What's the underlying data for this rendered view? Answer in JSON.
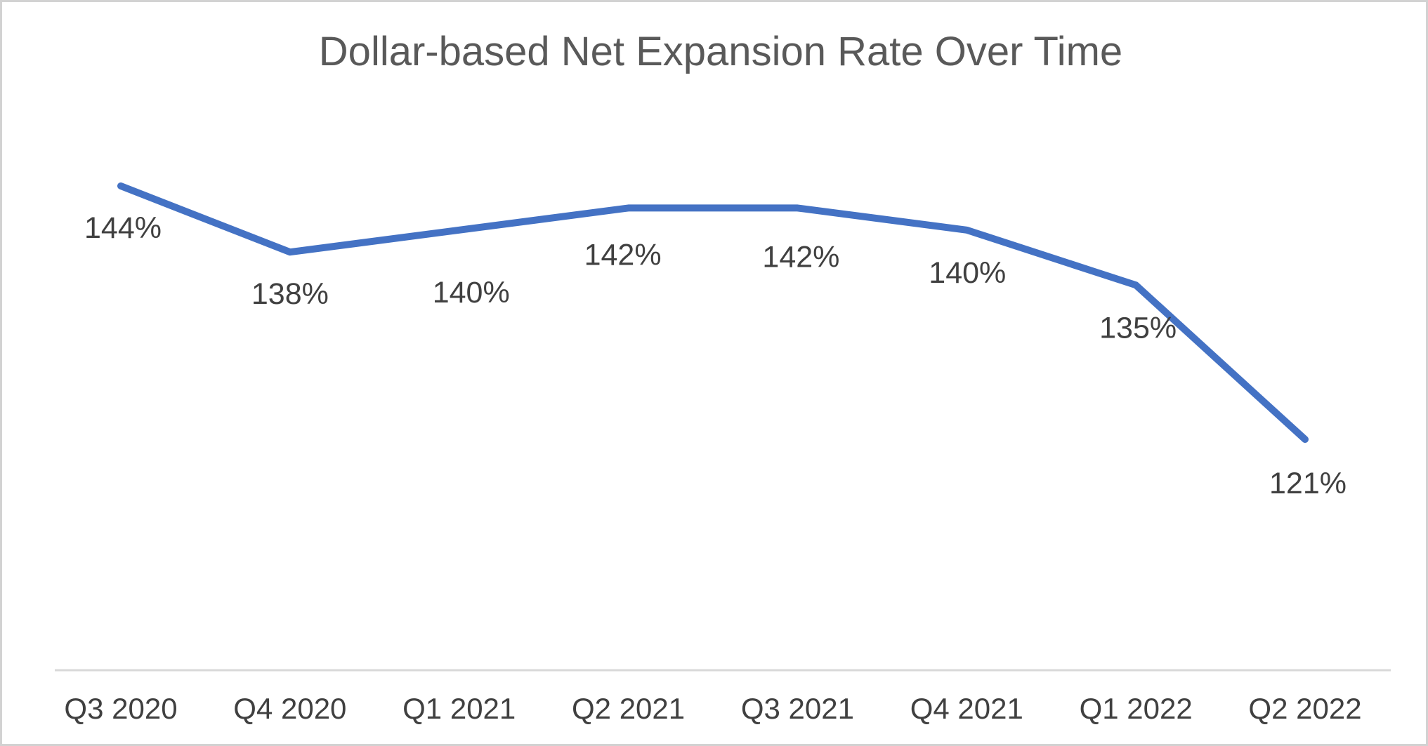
{
  "chart_data": {
    "type": "line",
    "title": "Dollar-based Net Expansion Rate Over Time",
    "categories": [
      "Q3 2020",
      "Q4 2020",
      "Q1 2021",
      "Q2 2021",
      "Q3 2021",
      "Q4 2021",
      "Q1 2022",
      "Q2 2022"
    ],
    "values": [
      144,
      138,
      140,
      142,
      142,
      140,
      135,
      121
    ],
    "data_labels": [
      "144%",
      "138%",
      "140%",
      "142%",
      "142%",
      "140%",
      "135%",
      "121%"
    ],
    "value_suffix": "%",
    "grid": false,
    "legend": "none",
    "y_axis_visible": false,
    "data_label_position": "below",
    "colors": {
      "line": "#4472C4",
      "title": "#595959",
      "data_label": "#404040",
      "axis_label": "#404040",
      "axis_line": "#D9D9D9",
      "background": "#FFFFFF",
      "border": "#D2D2D2"
    }
  }
}
